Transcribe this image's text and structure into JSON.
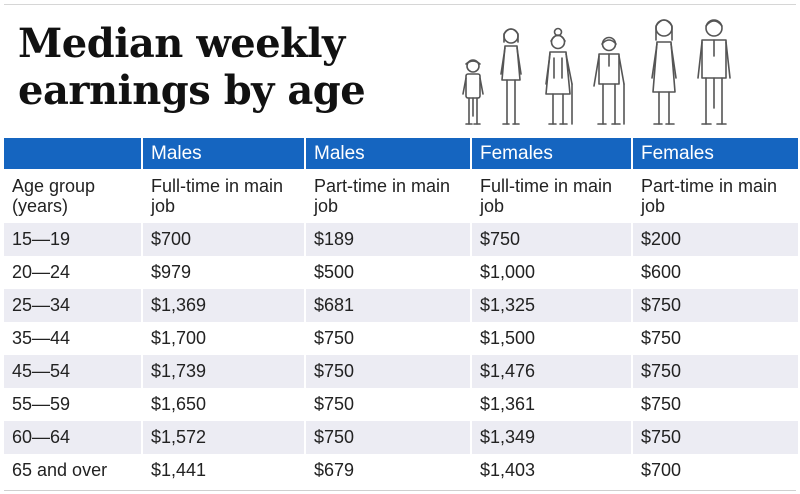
{
  "title": "Median weekly earnings by age",
  "icons": [
    "boy-figure-icon",
    "girl-figure-icon",
    "elderly-woman-with-cane-icon",
    "elderly-man-with-cane-icon",
    "woman-figure-icon",
    "man-figure-icon"
  ],
  "colors": {
    "header_bg": "#1565c0",
    "header_text": "#ffffff",
    "stripe": "#ececf3",
    "figure_stroke": "#555555"
  },
  "chart_data": {
    "type": "table",
    "title": "Median weekly earnings by age",
    "group_headers": [
      "",
      "Males",
      "Males",
      "Females",
      "Females"
    ],
    "column_headers": [
      "Age group (years)",
      "Full-time in main job",
      "Part-time in main job",
      "Full-time in main job",
      "Part-time in main job"
    ],
    "rows": [
      [
        "15—19",
        "$700",
        "$189",
        "$750",
        "$200"
      ],
      [
        "20—24",
        "$979",
        "$500",
        "$1,000",
        "$600"
      ],
      [
        "25—34",
        "$1,369",
        "$681",
        "$1,325",
        "$750"
      ],
      [
        "35—44",
        "$1,700",
        "$750",
        "$1,500",
        "$750"
      ],
      [
        "45—54",
        "$1,739",
        "$750",
        "$1,476",
        "$750"
      ],
      [
        "55—59",
        "$1,650",
        "$750",
        "$1,361",
        "$750"
      ],
      [
        "60—64",
        "$1,572",
        "$750",
        "$1,349",
        "$750"
      ],
      [
        "65 and over",
        "$1,441",
        "$679",
        "$1,403",
        "$700"
      ]
    ]
  }
}
